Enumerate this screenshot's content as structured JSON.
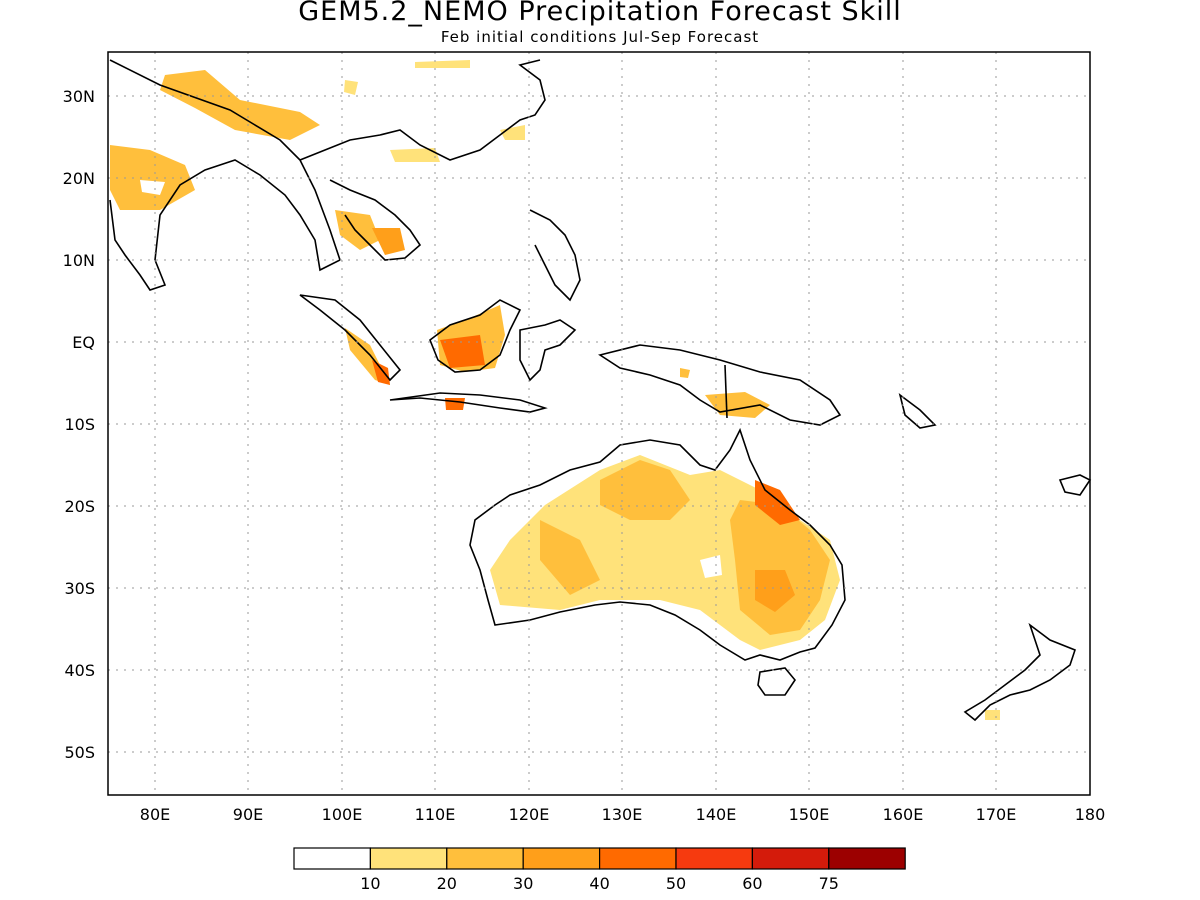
{
  "title": "GEM5.2_NEMO Precipitation Forecast Skill",
  "subtitle": "Feb initial conditions  Jul-Sep Forecast",
  "map": {
    "lon_range": [
      75,
      180
    ],
    "lat_range": [
      -55,
      35
    ],
    "lat_ticks": [
      "30N",
      "20N",
      "10N",
      "EQ",
      "10S",
      "20S",
      "30S",
      "40S",
      "50S"
    ],
    "lon_ticks": [
      "80E",
      "90E",
      "100E",
      "110E",
      "120E",
      "130E",
      "140E",
      "150E",
      "160E",
      "170E",
      "180"
    ],
    "grid": "dotted"
  },
  "legend": {
    "labels": [
      "10",
      "20",
      "30",
      "40",
      "50",
      "60",
      "75"
    ],
    "colors": [
      "#ffffff",
      "#ffe27a",
      "#ffbf3c",
      "#ff9f1a",
      "#ff6a00",
      "#f63a0f",
      "#d41b0b",
      "#9c0000"
    ]
  }
}
